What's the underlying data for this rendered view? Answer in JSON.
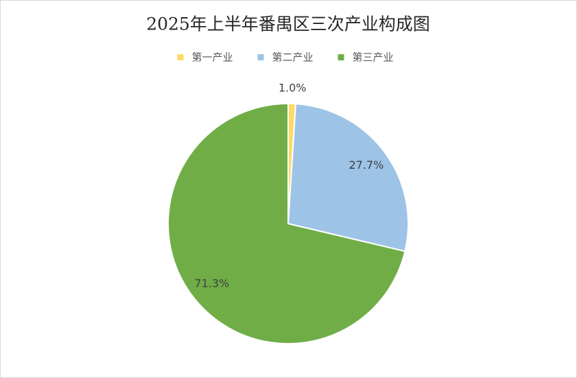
{
  "chart_data": {
    "type": "pie",
    "title": "2025年上半年番禺区三次产业构成图",
    "categories": [
      "第一产业",
      "第二产业",
      "第三产业"
    ],
    "values": [
      1.0,
      27.7,
      71.3
    ],
    "value_labels": [
      "1.0%",
      "27.7%",
      "71.3%"
    ],
    "colors": [
      "#FFD966",
      "#9DC3E6",
      "#70AD47"
    ],
    "legend": "top"
  }
}
